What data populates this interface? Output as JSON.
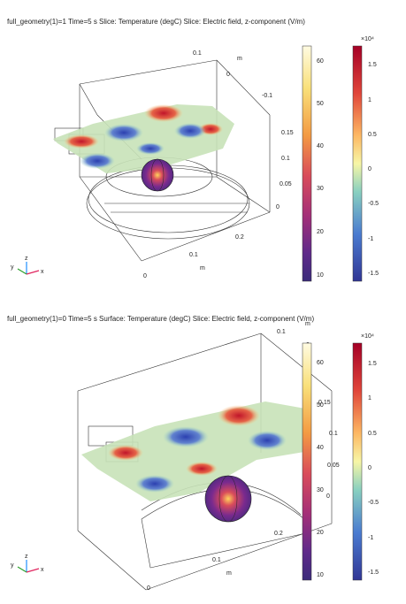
{
  "panels": [
    {
      "title": "full_geometry(1)=1 Time=5 s  Slice: Temperature (degC)  Slice: Electric field, z-component (V/m)",
      "axes": {
        "top_ticks": [
          "0.1",
          "0",
          "-0.1"
        ],
        "top_unit": "m",
        "right_ticks": [
          "0.15",
          "0.1",
          "0.05",
          "0"
        ],
        "bottom_ticks": [
          "0.2",
          "0.1",
          "0"
        ],
        "bottom_unit": "m"
      },
      "temp_colorbar": {
        "ticks": [
          "60",
          "50",
          "40",
          "30",
          "20",
          "10"
        ]
      },
      "efield_colorbar": {
        "exponent": "×10⁴",
        "ticks": [
          "1.5",
          "1",
          "0.5",
          "0",
          "-0.5",
          "-1",
          "-1.5"
        ]
      },
      "triad": {
        "x": "x",
        "y": "y",
        "z": "z"
      }
    },
    {
      "title": "full_geometry(1)=0 Time=5 s  Surface: Temperature (degC)  Slice: Electric field, z-component (V/m)",
      "axes": {
        "top_ticks": [
          "0.1",
          "0"
        ],
        "top_unit": "m",
        "right_ticks": [
          "0.15",
          "0.1",
          "0.05",
          "0"
        ],
        "bottom_ticks": [
          "0.2",
          "0.1",
          "0"
        ],
        "bottom_unit": "m"
      },
      "temp_colorbar": {
        "ticks": [
          "60",
          "50",
          "40",
          "30",
          "20",
          "10"
        ]
      },
      "efield_colorbar": {
        "exponent": "×10⁴",
        "ticks": [
          "1.5",
          "1",
          "0.5",
          "0",
          "-0.5",
          "-1",
          "-1.5"
        ]
      },
      "triad": {
        "x": "x",
        "y": "y",
        "z": "z"
      }
    }
  ],
  "colors": {
    "efield_gradient": [
      "#a50026",
      "#d73027",
      "#f46d43",
      "#fdae61",
      "#f7f7a0",
      "#abdda4",
      "#66c2c5",
      "#4575b4",
      "#313695"
    ],
    "temp_gradient": [
      "#fffbe2",
      "#f9e07a",
      "#f6a34a",
      "#e0544d",
      "#b0316f",
      "#702a8c",
      "#3a2a79"
    ]
  }
}
